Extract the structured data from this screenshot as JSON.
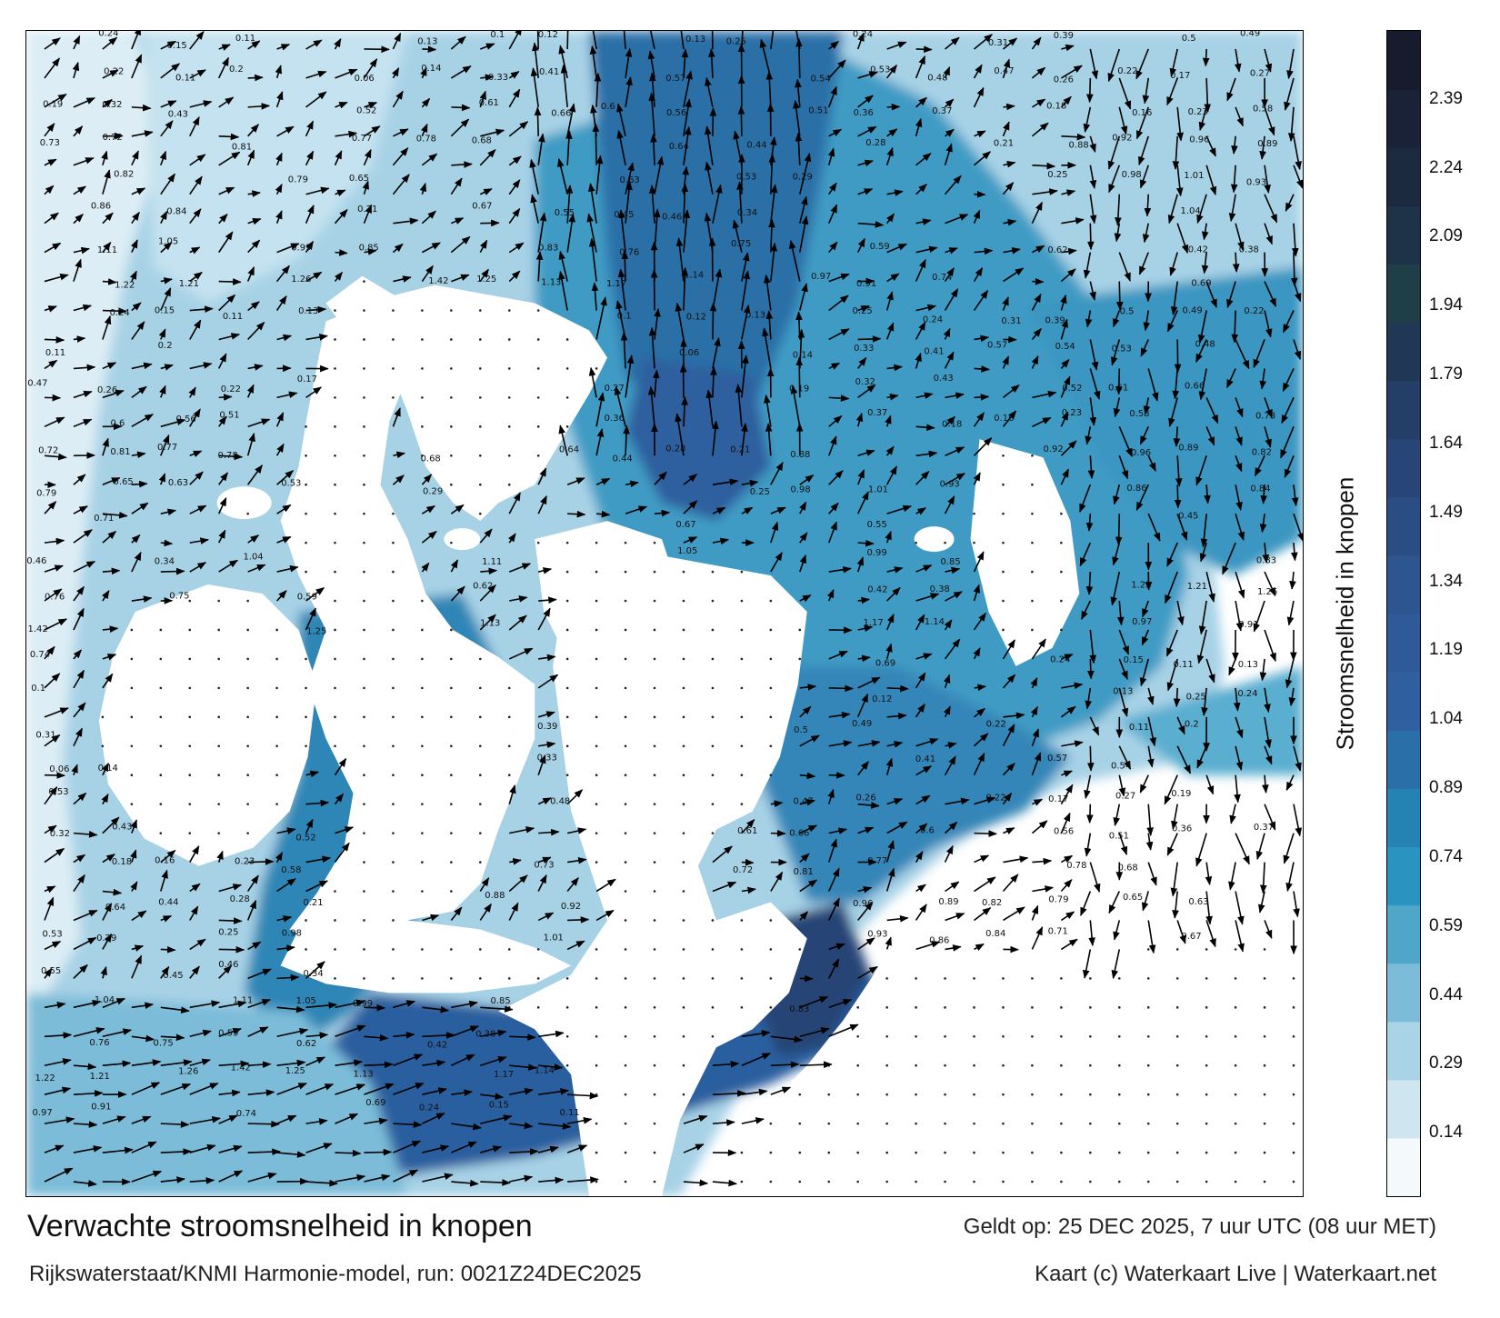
{
  "title": "Verwachte stroomsnelheid in knopen",
  "subtitle": "Rijkswaterstaat/KNMI Harmonie-model, run: 0021Z24DEC2025",
  "valid_time": "Geldt op: 25 DEC 2025, 7 uur UTC (08 uur MET)",
  "credit": "Kaart (c) Waterkaart Live | Waterkaart.net",
  "colorbar": {
    "title": "Stroomsnelheid in knopen",
    "min": 0.0,
    "max": 2.54,
    "ticks": [
      "2.39",
      "2.24",
      "2.09",
      "1.94",
      "1.79",
      "1.64",
      "1.49",
      "1.34",
      "1.19",
      "1.04",
      "0.89",
      "0.74",
      "0.59",
      "0.44",
      "0.29",
      "0.14"
    ],
    "colors": [
      "#f4f9fc",
      "#cfe6f1",
      "#a9d3e6",
      "#7cbcd8",
      "#4fa6c9",
      "#2b93bf",
      "#2483b2",
      "#2a6fa7",
      "#2f5f9e",
      "#2e5a97",
      "#2d558f",
      "#2a4d84",
      "#274576",
      "#233f67",
      "#203855",
      "#1f3f48",
      "#1e3347",
      "#1c2a40",
      "#1a2237",
      "#171b2e"
    ]
  },
  "sample_speed_labels": [
    "0.24",
    "0.15",
    "0.11",
    "0.13",
    "0.1",
    "0.12",
    "0.13",
    "0.25",
    "0.24",
    "0.31",
    "0.39",
    "0.5",
    "0.49",
    "0.22",
    "0.11",
    "0.2",
    "0.06",
    "0.14",
    "0.33",
    "0.41",
    "0.57",
    "0.54",
    "0.53",
    "0.48",
    "0.47",
    "0.26",
    "0.22",
    "0.17",
    "0.27",
    "0.19",
    "0.32",
    "0.43",
    "0.52",
    "0.61",
    "0.66",
    "0.6",
    "0.56",
    "0.51",
    "0.36",
    "0.37",
    "0.18",
    "0.16",
    "0.23",
    "0.58",
    "0.73",
    "0.72",
    "0.81",
    "0.77",
    "0.78",
    "0.68",
    "0.64",
    "0.44",
    "0.28",
    "0.21",
    "0.88",
    "0.92",
    "0.96",
    "0.89",
    "0.82",
    "0.79",
    "0.65",
    "0.63",
    "0.53",
    "0.29",
    "0.25",
    "0.98",
    "1.01",
    "0.93",
    "0.86",
    "0.84",
    "0.71",
    "0.67",
    "0.55",
    "0.45",
    "0.46",
    "0.34",
    "1.04",
    "1.11",
    "1.05",
    "0.99",
    "0.85",
    "0.83",
    "0.76",
    "0.75",
    "0.59",
    "0.62",
    "0.42",
    "0.38",
    "1.22",
    "1.21",
    "1.26",
    "1.42",
    "1.25",
    "1.13",
    "1.17",
    "1.14",
    "0.97",
    "0.91",
    "0.74",
    "0.69"
  ]
}
